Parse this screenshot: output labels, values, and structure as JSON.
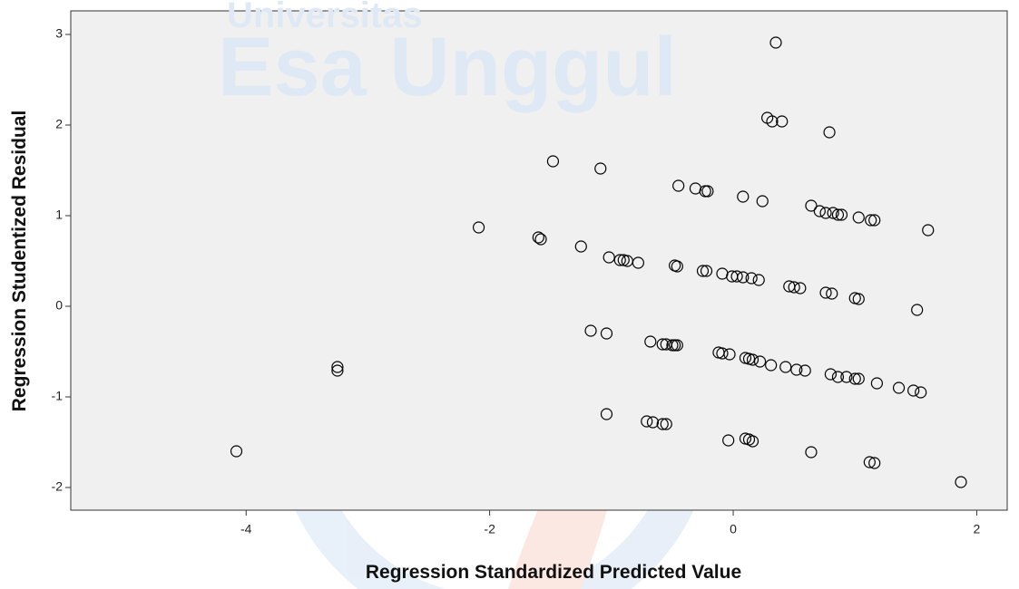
{
  "chart_data": {
    "type": "scatter",
    "x_label": "Regression Standardized Predicted Value",
    "y_label": "Regression Studentized Residual",
    "watermark": [
      "Universitas",
      "Esa Unggul"
    ],
    "color": "#000000",
    "background": "#f0f0f0",
    "xlim": [
      -5.44,
      2.25
    ],
    "ylim": [
      -2.25,
      3.26
    ],
    "xticks": [
      -4,
      -2,
      0,
      2
    ],
    "yticks": [
      -2,
      -1,
      0,
      1,
      2,
      3
    ],
    "grid": false,
    "x": [
      -4.08,
      -3.25,
      -3.25,
      -2.09,
      -1.6,
      -1.58,
      -1.48,
      -1.25,
      -1.17,
      -1.09,
      -1.04,
      -1.04,
      -1.02,
      -0.93,
      -0.9,
      -0.87,
      -0.78,
      -0.68,
      -0.71,
      -0.66,
      -0.58,
      -0.55,
      -0.5,
      -0.48,
      -0.46,
      -0.58,
      -0.55,
      -0.48,
      -0.46,
      -0.45,
      -0.31,
      -0.23,
      -0.21,
      -0.25,
      -0.22,
      -0.12,
      -0.09,
      -0.03,
      -0.09,
      -0.01,
      0.03,
      0.08,
      0.15,
      0.21,
      0.08,
      0.24,
      -0.04,
      0.1,
      0.13,
      0.16,
      0.22,
      0.1,
      0.13,
      0.16,
      0.31,
      0.28,
      0.32,
      0.4,
      0.35,
      0.43,
      0.46,
      0.5,
      0.55,
      0.52,
      0.59,
      0.64,
      0.64,
      0.71,
      0.76,
      0.82,
      0.86,
      0.89,
      0.76,
      0.81,
      0.79,
      0.8,
      0.86,
      0.93,
      1.0,
      1.03,
      1.0,
      1.03,
      1.03,
      1.13,
      1.16,
      1.12,
      1.16,
      1.18,
      1.36,
      1.48,
      1.54,
      1.51,
      1.6,
      1.87
    ],
    "values": [
      -1.6,
      -0.67,
      -0.71,
      0.87,
      0.76,
      0.74,
      1.6,
      0.66,
      -0.27,
      1.52,
      -0.3,
      -1.19,
      0.54,
      0.51,
      0.51,
      0.5,
      0.48,
      -0.39,
      -1.27,
      -1.28,
      -0.42,
      -0.42,
      -0.43,
      -0.43,
      -0.43,
      -1.3,
      -1.3,
      0.45,
      0.44,
      1.33,
      1.3,
      1.27,
      1.27,
      0.39,
      0.39,
      -0.51,
      -0.52,
      -0.53,
      0.36,
      0.33,
      0.33,
      0.32,
      0.31,
      0.29,
      1.21,
      1.16,
      -1.48,
      -0.57,
      -0.58,
      -0.59,
      -0.61,
      -1.46,
      -1.47,
      -1.49,
      -0.65,
      2.08,
      2.04,
      2.04,
      2.91,
      -0.67,
      0.22,
      0.21,
      0.2,
      -0.7,
      -0.71,
      1.11,
      -1.61,
      1.05,
      1.03,
      1.03,
      1.01,
      1.01,
      0.15,
      0.14,
      1.92,
      -0.75,
      -0.78,
      -0.78,
      -0.8,
      -0.8,
      0.09,
      0.08,
      0.98,
      0.95,
      0.95,
      -1.72,
      -1.73,
      -0.85,
      -0.9,
      -0.93,
      -0.95,
      -0.04,
      0.84,
      -1.94
    ]
  }
}
